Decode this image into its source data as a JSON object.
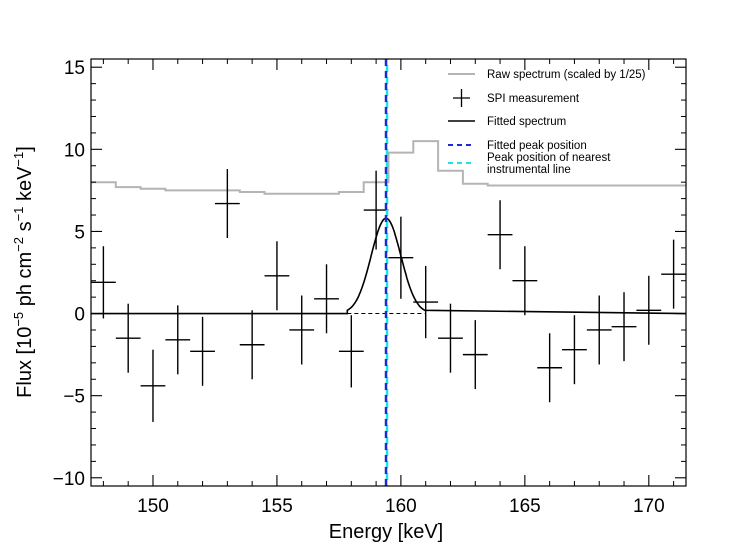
{
  "chart_data": {
    "type": "line",
    "xlabel": "Energy [keV]",
    "ylabel_parts": {
      "prefix": "Flux [10",
      "exp1": "−5",
      "mid1": " ph cm",
      "exp2": "−2",
      "mid2": " s",
      "exp3": "−1",
      "mid3": " keV",
      "exp4": "−1",
      "suffix": "]"
    },
    "xlim": [
      147.5,
      171.5
    ],
    "ylim": [
      -10.5,
      15.5
    ],
    "xticks": [
      150,
      155,
      160,
      165,
      170
    ],
    "yticks": [
      -10,
      -5,
      0,
      5,
      10,
      15
    ],
    "grid": false,
    "legend_position": "top-right",
    "legend": [
      {
        "label": "Raw spectrum (scaled by 1/25)",
        "style": "gray-line"
      },
      {
        "label": "SPI measurement",
        "style": "errorbar"
      },
      {
        "label": "Fitted spectrum",
        "style": "black-line"
      },
      {
        "label": "Fitted peak position",
        "style": "blue-dash"
      },
      {
        "label": "Peak position of nearest",
        "label_line2": "instrumental line",
        "style": "cyan-dash"
      }
    ],
    "colors": {
      "raw": "#b4b4b4",
      "measurement": "#000000",
      "fit": "#000000",
      "peak": "#1a2bd6",
      "instrumental": "#20e0e8"
    },
    "raw_spectrum": {
      "edges": [
        147.5,
        148.5,
        149.5,
        150.5,
        151.5,
        152.5,
        153.5,
        154.5,
        155.5,
        156.5,
        157.5,
        158.5,
        159.5,
        160.5,
        161.5,
        162.5,
        163.5,
        164.5,
        165.5,
        166.5,
        167.5,
        168.5,
        169.5,
        170.5,
        171.5
      ],
      "values": [
        8.0,
        7.7,
        7.6,
        7.5,
        7.5,
        7.5,
        7.4,
        7.3,
        7.3,
        7.3,
        7.4,
        8.0,
        9.8,
        10.5,
        8.7,
        7.9,
        7.8,
        7.8,
        7.8,
        7.8,
        7.8,
        7.8,
        7.8,
        7.8
      ]
    },
    "measurements": [
      {
        "x": 148,
        "y": 1.9,
        "err": 2.2
      },
      {
        "x": 149,
        "y": -1.5,
        "err": 2.1
      },
      {
        "x": 150,
        "y": -4.4,
        "err": 2.2
      },
      {
        "x": 151,
        "y": -1.6,
        "err": 2.1
      },
      {
        "x": 152,
        "y": -2.3,
        "err": 2.1
      },
      {
        "x": 153,
        "y": 6.7,
        "err": 2.1
      },
      {
        "x": 154,
        "y": -1.9,
        "err": 2.1
      },
      {
        "x": 155,
        "y": 2.3,
        "err": 2.1
      },
      {
        "x": 156,
        "y": -1.0,
        "err": 2.1
      },
      {
        "x": 157,
        "y": 0.9,
        "err": 2.1
      },
      {
        "x": 158,
        "y": -2.3,
        "err": 2.2
      },
      {
        "x": 159,
        "y": 6.3,
        "err": 2.4
      },
      {
        "x": 160,
        "y": 3.4,
        "err": 2.5
      },
      {
        "x": 161,
        "y": 0.7,
        "err": 2.2
      },
      {
        "x": 162,
        "y": -1.5,
        "err": 2.1
      },
      {
        "x": 163,
        "y": -2.5,
        "err": 2.1
      },
      {
        "x": 164,
        "y": 4.8,
        "err": 2.1
      },
      {
        "x": 165,
        "y": 2.0,
        "err": 2.1
      },
      {
        "x": 166,
        "y": -3.3,
        "err": 2.1
      },
      {
        "x": 167,
        "y": -2.2,
        "err": 2.1
      },
      {
        "x": 168,
        "y": -1.0,
        "err": 2.1
      },
      {
        "x": 169,
        "y": -0.8,
        "err": 2.1
      },
      {
        "x": 170,
        "y": 0.2,
        "err": 2.1
      },
      {
        "x": 171,
        "y": 2.4,
        "err": 2.1
      }
    ],
    "fit": {
      "center": 159.4,
      "amplitude": 5.8,
      "sigma": 0.6
    },
    "peak_position": 159.4,
    "instrumental_line": 159.4
  }
}
